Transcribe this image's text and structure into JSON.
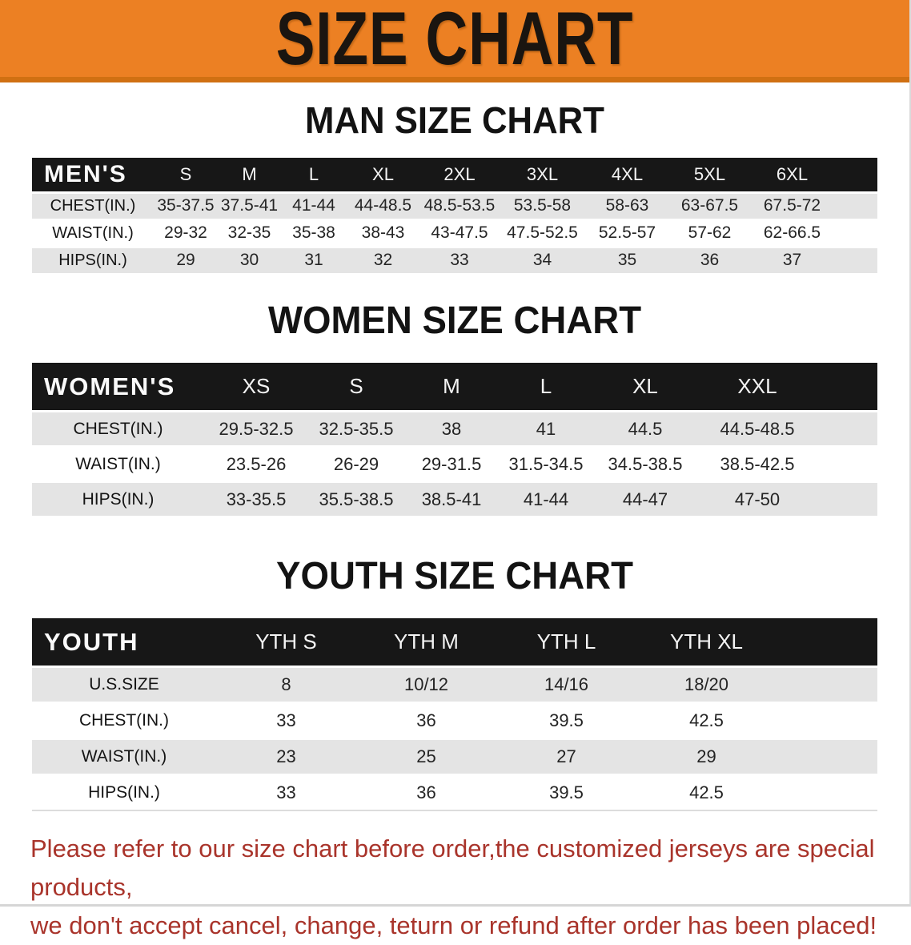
{
  "banner": {
    "title": "SIZE CHART"
  },
  "colors": {
    "banner_bg": "#ec8023",
    "banner_edge": "#d07012",
    "header_bar": "#171717",
    "row_gray": "#e4e4e4",
    "footer_red": "#a9342b"
  },
  "sections": [
    {
      "heading": "MAN SIZE CHART",
      "label": "MEN'S",
      "sizes": [
        "S",
        "M",
        "L",
        "XL",
        "2XL",
        "3XL",
        "4XL",
        "5XL",
        "6XL"
      ],
      "rows": [
        {
          "label": "CHEST(IN.)",
          "values": [
            "35-37.5",
            "37.5-41",
            "41-44",
            "44-48.5",
            "48.5-53.5",
            "53.5-58",
            "58-63",
            "63-67.5",
            "67.5-72"
          ]
        },
        {
          "label": "WAIST(IN.)",
          "values": [
            "29-32",
            "32-35",
            "35-38",
            "38-43",
            "43-47.5",
            "47.5-52.5",
            "52.5-57",
            "57-62",
            "62-66.5"
          ]
        },
        {
          "label": "HIPS(IN.)",
          "values": [
            "29",
            "30",
            "31",
            "32",
            "33",
            "34",
            "35",
            "36",
            "37"
          ]
        }
      ]
    },
    {
      "heading": "WOMEN SIZE CHART",
      "label": "WOMEN'S",
      "sizes": [
        "XS",
        "S",
        "M",
        "L",
        "XL",
        "XXL"
      ],
      "rows": [
        {
          "label": "CHEST(IN.)",
          "values": [
            "29.5-32.5",
            "32.5-35.5",
            "38",
            "41",
            "44.5",
            "44.5-48.5"
          ]
        },
        {
          "label": "WAIST(IN.)",
          "values": [
            "23.5-26",
            "26-29",
            "29-31.5",
            "31.5-34.5",
            "34.5-38.5",
            "38.5-42.5"
          ]
        },
        {
          "label": "HIPS(IN.)",
          "values": [
            "33-35.5",
            "35.5-38.5",
            "38.5-41",
            "41-44",
            "44-47",
            "47-50"
          ]
        }
      ]
    },
    {
      "heading": "YOUTH SIZE CHART",
      "label": "YOUTH",
      "sizes": [
        "YTH S",
        "YTH M",
        "YTH L",
        "YTH XL"
      ],
      "rows": [
        {
          "label": "U.S.SIZE",
          "values": [
            "8",
            "10/12",
            "14/16",
            "18/20"
          ]
        },
        {
          "label": "CHEST(IN.)",
          "values": [
            "33",
            "36",
            "39.5",
            "42.5"
          ]
        },
        {
          "label": "WAIST(IN.)",
          "values": [
            "23",
            "25",
            "27",
            "29"
          ]
        },
        {
          "label": "HIPS(IN.)",
          "values": [
            "33",
            "36",
            "39.5",
            "42.5"
          ]
        }
      ]
    }
  ],
  "footer": {
    "line1": "Please refer to our size chart before order,the customized jerseys are special products,",
    "line2": "we don't accept cancel, change, teturn or refund after order has been placed!"
  }
}
